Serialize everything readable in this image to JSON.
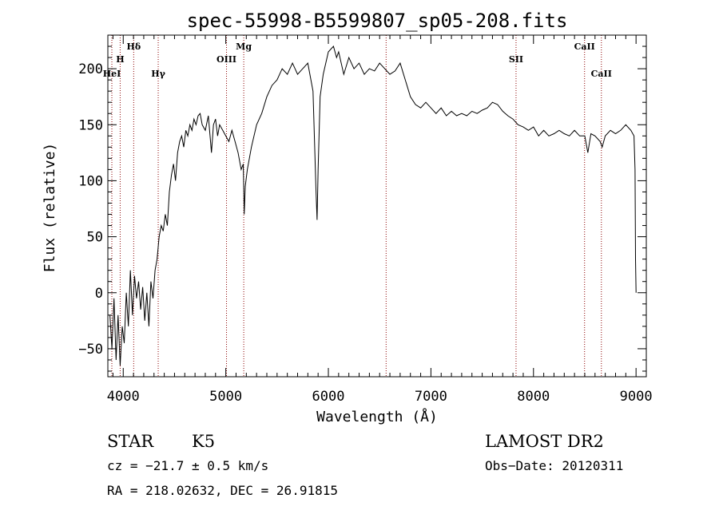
{
  "chart_data": {
    "type": "line",
    "title": "spec-55998-B5599807_sp05-208.fits",
    "xlabel": "Wavelength (Å)",
    "ylabel": "Flux (relative)",
    "xlim": [
      3850,
      9100
    ],
    "ylim": [
      -75,
      230
    ],
    "xticks": [
      4000,
      5000,
      6000,
      7000,
      8000,
      9000
    ],
    "yticks": [
      -50,
      0,
      50,
      100,
      150,
      200
    ],
    "grid": false,
    "series": [
      {
        "values": [
          [
            3870,
            -20
          ],
          [
            3890,
            -50
          ],
          [
            3910,
            -5
          ],
          [
            3930,
            -60
          ],
          [
            3950,
            -20
          ],
          [
            3970,
            -65
          ],
          [
            3990,
            -30
          ],
          [
            4010,
            -45
          ],
          [
            4030,
            0
          ],
          [
            4050,
            -30
          ],
          [
            4070,
            20
          ],
          [
            4090,
            -20
          ],
          [
            4110,
            15
          ],
          [
            4130,
            -5
          ],
          [
            4150,
            10
          ],
          [
            4170,
            -15
          ],
          [
            4190,
            5
          ],
          [
            4210,
            -25
          ],
          [
            4230,
            0
          ],
          [
            4250,
            -30
          ],
          [
            4270,
            10
          ],
          [
            4290,
            -5
          ],
          [
            4310,
            20
          ],
          [
            4330,
            30
          ],
          [
            4350,
            50
          ],
          [
            4370,
            60
          ],
          [
            4390,
            55
          ],
          [
            4410,
            70
          ],
          [
            4430,
            60
          ],
          [
            4450,
            90
          ],
          [
            4470,
            105
          ],
          [
            4490,
            115
          ],
          [
            4510,
            100
          ],
          [
            4530,
            125
          ],
          [
            4550,
            135
          ],
          [
            4570,
            140
          ],
          [
            4590,
            130
          ],
          [
            4610,
            145
          ],
          [
            4630,
            140
          ],
          [
            4650,
            150
          ],
          [
            4670,
            145
          ],
          [
            4690,
            155
          ],
          [
            4710,
            150
          ],
          [
            4730,
            158
          ],
          [
            4750,
            160
          ],
          [
            4770,
            150
          ],
          [
            4800,
            145
          ],
          [
            4830,
            158
          ],
          [
            4860,
            125
          ],
          [
            4880,
            150
          ],
          [
            4900,
            155
          ],
          [
            4920,
            140
          ],
          [
            4940,
            150
          ],
          [
            4970,
            145
          ],
          [
            5000,
            140
          ],
          [
            5030,
            135
          ],
          [
            5060,
            145
          ],
          [
            5090,
            135
          ],
          [
            5120,
            125
          ],
          [
            5150,
            110
          ],
          [
            5170,
            115
          ],
          [
            5180,
            70
          ],
          [
            5190,
            95
          ],
          [
            5210,
            110
          ],
          [
            5250,
            130
          ],
          [
            5300,
            150
          ],
          [
            5350,
            160
          ],
          [
            5400,
            175
          ],
          [
            5450,
            185
          ],
          [
            5500,
            190
          ],
          [
            5550,
            200
          ],
          [
            5600,
            195
          ],
          [
            5650,
            205
          ],
          [
            5700,
            195
          ],
          [
            5750,
            200
          ],
          [
            5800,
            205
          ],
          [
            5850,
            180
          ],
          [
            5880,
            90
          ],
          [
            5890,
            65
          ],
          [
            5900,
            110
          ],
          [
            5920,
            175
          ],
          [
            5950,
            195
          ],
          [
            6000,
            215
          ],
          [
            6050,
            220
          ],
          [
            6080,
            210
          ],
          [
            6100,
            215
          ],
          [
            6150,
            195
          ],
          [
            6200,
            210
          ],
          [
            6250,
            200
          ],
          [
            6300,
            205
          ],
          [
            6350,
            195
          ],
          [
            6400,
            200
          ],
          [
            6450,
            198
          ],
          [
            6500,
            205
          ],
          [
            6550,
            200
          ],
          [
            6600,
            195
          ],
          [
            6650,
            198
          ],
          [
            6700,
            205
          ],
          [
            6750,
            190
          ],
          [
            6800,
            175
          ],
          [
            6850,
            168
          ],
          [
            6900,
            165
          ],
          [
            6950,
            170
          ],
          [
            7000,
            165
          ],
          [
            7050,
            160
          ],
          [
            7100,
            165
          ],
          [
            7150,
            158
          ],
          [
            7200,
            162
          ],
          [
            7250,
            158
          ],
          [
            7300,
            160
          ],
          [
            7350,
            158
          ],
          [
            7400,
            162
          ],
          [
            7450,
            160
          ],
          [
            7500,
            163
          ],
          [
            7550,
            165
          ],
          [
            7600,
            170
          ],
          [
            7650,
            168
          ],
          [
            7700,
            162
          ],
          [
            7750,
            158
          ],
          [
            7800,
            155
          ],
          [
            7850,
            150
          ],
          [
            7900,
            148
          ],
          [
            7950,
            145
          ],
          [
            8000,
            148
          ],
          [
            8050,
            140
          ],
          [
            8100,
            145
          ],
          [
            8150,
            140
          ],
          [
            8200,
            142
          ],
          [
            8250,
            145
          ],
          [
            8300,
            142
          ],
          [
            8350,
            140
          ],
          [
            8400,
            145
          ],
          [
            8450,
            140
          ],
          [
            8500,
            140
          ],
          [
            8530,
            125
          ],
          [
            8560,
            142
          ],
          [
            8600,
            140
          ],
          [
            8650,
            135
          ],
          [
            8670,
            130
          ],
          [
            8700,
            140
          ],
          [
            8750,
            145
          ],
          [
            8800,
            142
          ],
          [
            8850,
            145
          ],
          [
            8900,
            150
          ],
          [
            8950,
            145
          ],
          [
            8980,
            140
          ],
          [
            8990,
            110
          ],
          [
            8995,
            30
          ],
          [
            9000,
            0
          ]
        ]
      }
    ],
    "lines": [
      {
        "label": "HeI",
        "x": 3889,
        "tier": 3
      },
      {
        "label": "H",
        "x": 3970,
        "tier": 2
      },
      {
        "label": "Hδ",
        "x": 4102,
        "tier": 1
      },
      {
        "label": "Hγ",
        "x": 4341,
        "tier": 3
      },
      {
        "label": "OIII",
        "x": 5007,
        "tier": 2
      },
      {
        "label": "Mg",
        "x": 5175,
        "tier": 1
      },
      {
        "label": "",
        "x": 6563,
        "tier": 1
      },
      {
        "label": "SII",
        "x": 7830,
        "tier": 2
      },
      {
        "label": "CaII",
        "x": 8498,
        "tier": 1
      },
      {
        "label": "CaII",
        "x": 8662,
        "tier": 3
      }
    ],
    "line_color": "#8b0000"
  },
  "info": {
    "object_type": "STAR",
    "subclass": "K5",
    "survey": "LAMOST DR2",
    "cz": "cz = −21.7 ± 0.5 km/s",
    "obs_date": "Obs−Date: 20120311",
    "coords": "RA = 218.02632, DEC =  26.91815"
  }
}
